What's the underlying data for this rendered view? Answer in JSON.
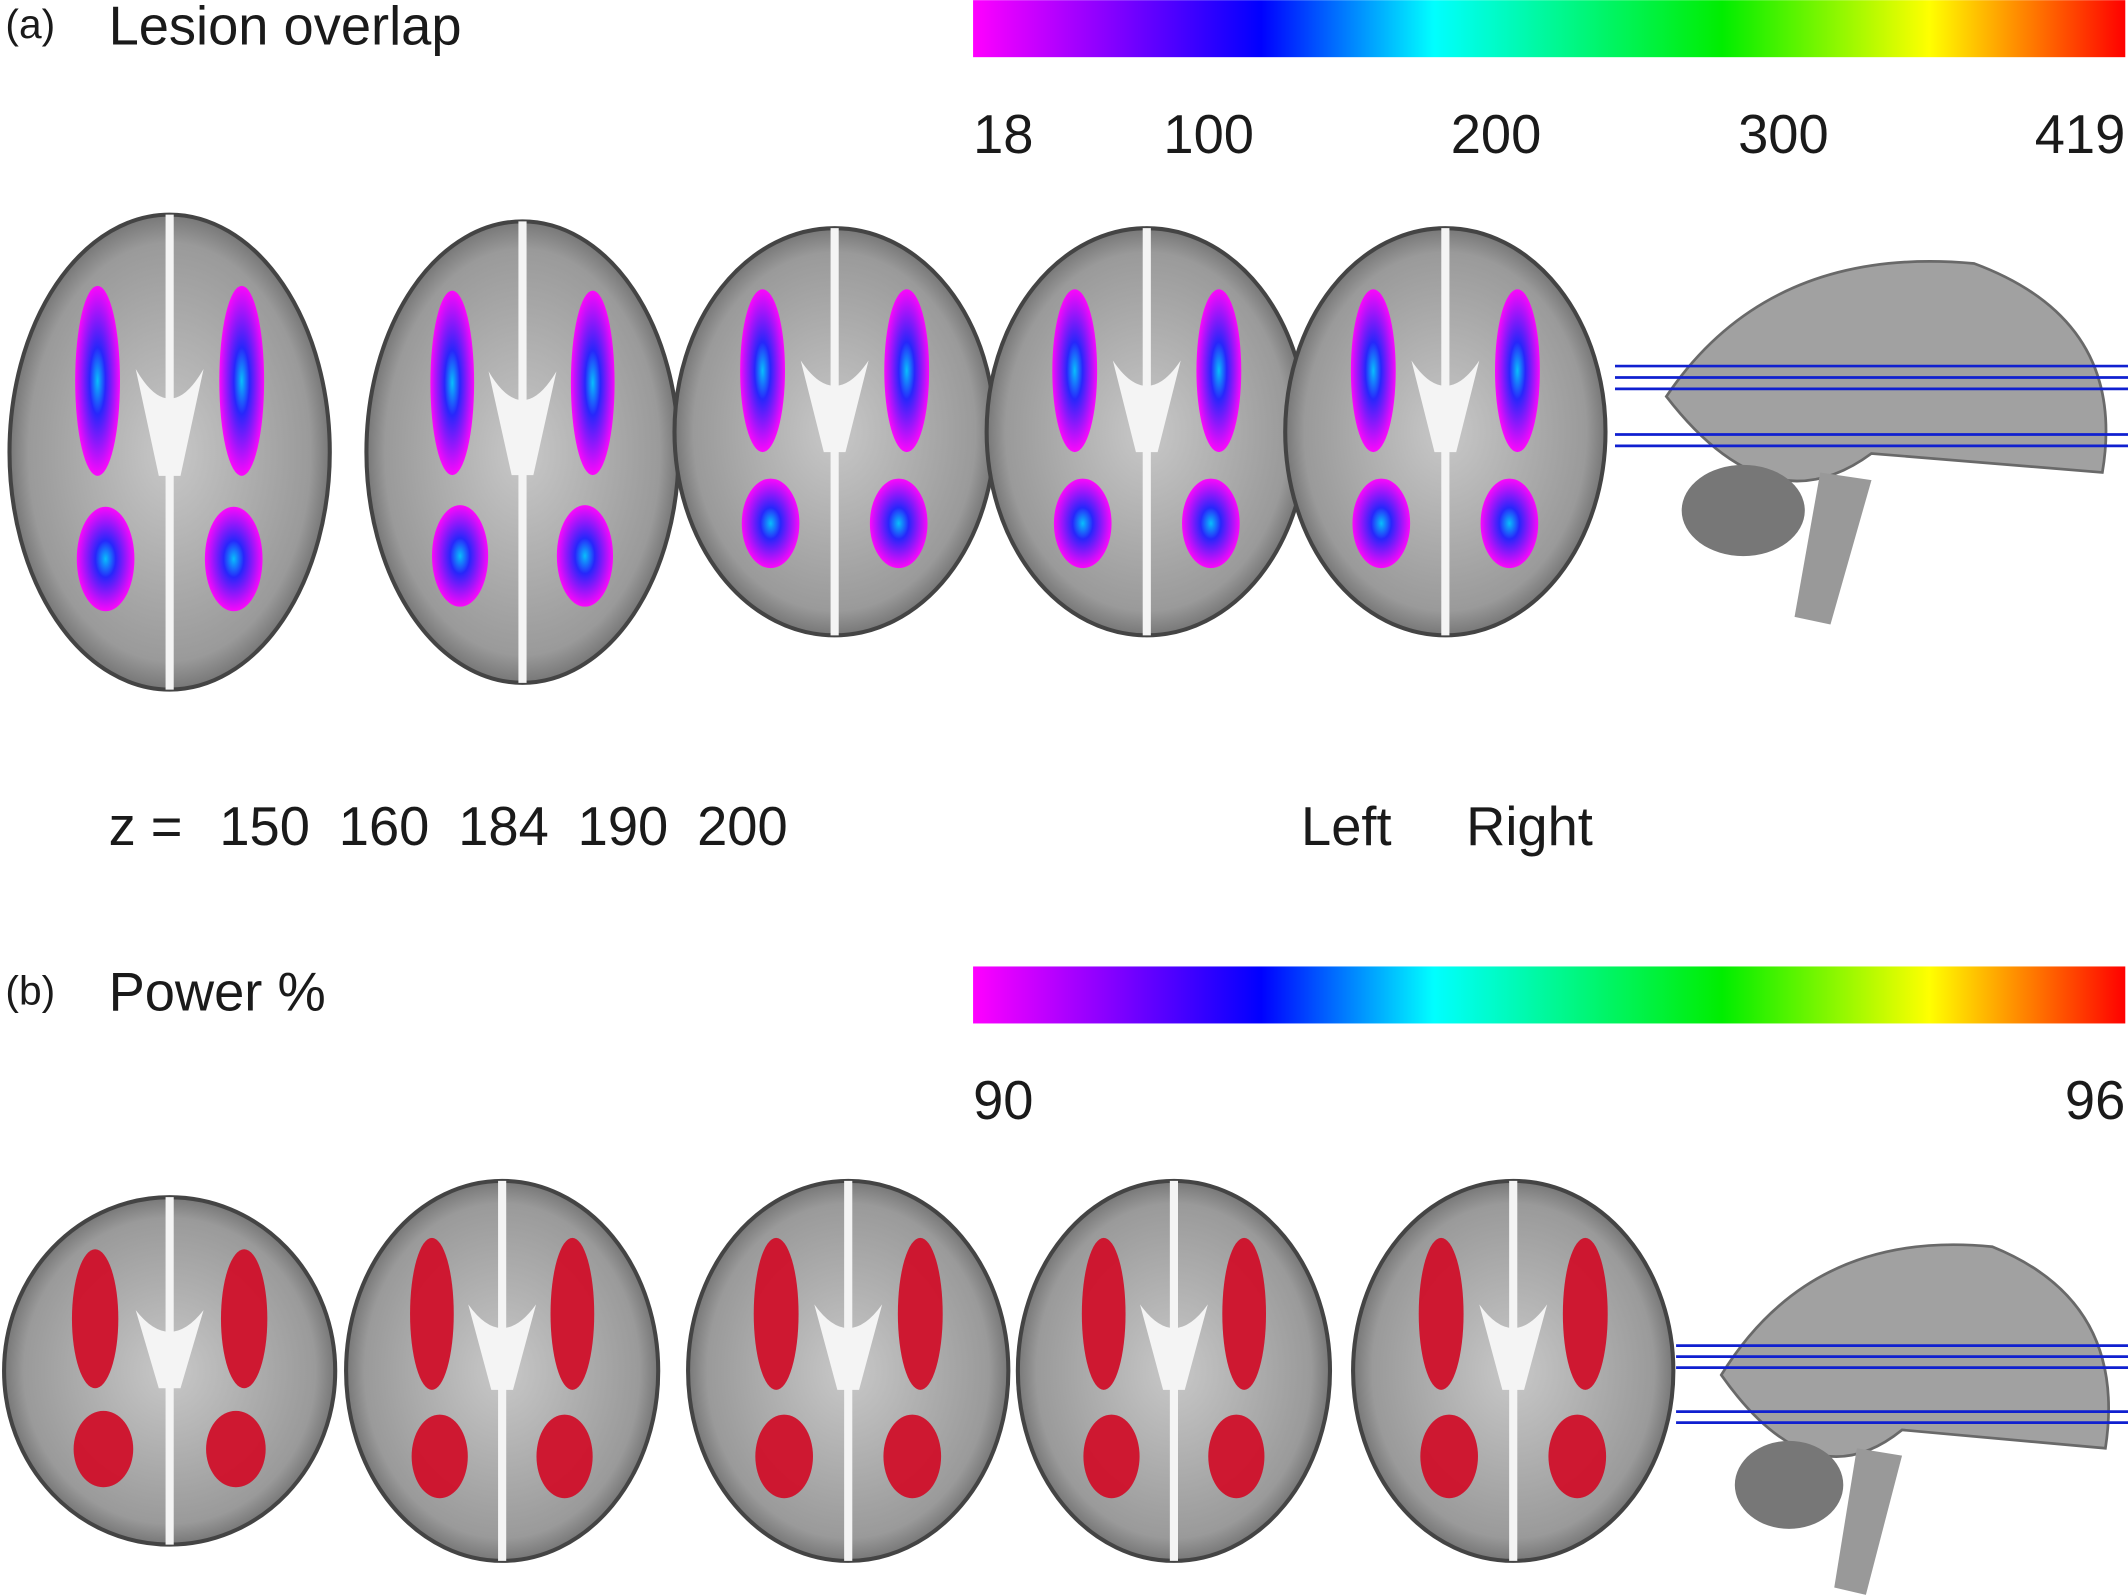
{
  "panels": [
    {
      "label": "(a)",
      "title": "Lesion overlap",
      "colorbar_ticks": [
        18,
        100,
        200,
        300,
        419
      ],
      "z_label": "z =",
      "z_values": [
        150,
        160,
        184,
        190,
        200
      ],
      "side_labels": [
        "Left",
        "Right"
      ]
    },
    {
      "label": "(b)",
      "title": "Power %",
      "colorbar_ticks": [
        90,
        96
      ]
    }
  ]
}
